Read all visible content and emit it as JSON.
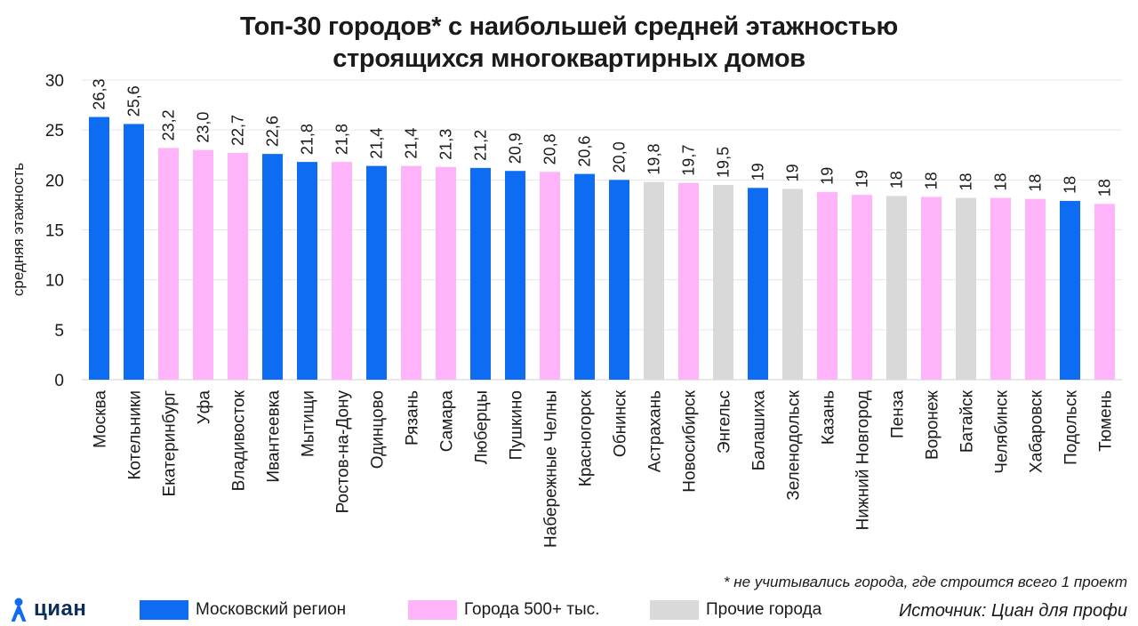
{
  "title_line1": "Топ-30 городов* с наибольшей средней этажностью",
  "title_line2": "строящихся многоквартирных домов",
  "footnote": "* не учитывались города, где строится всего 1 проект",
  "source": "Источник:  Циан для профи",
  "logo": {
    "text": "циан",
    "icon": "cian-logo-icon"
  },
  "colors": {
    "moscow": "#0d6cf2",
    "big": "#ffb3f9",
    "other": "#d9d9d9",
    "grid": "#e6e6e6"
  },
  "legend": [
    {
      "key": "moscow",
      "label": "Московский регион"
    },
    {
      "key": "big",
      "label": "Города 500+ тыс."
    },
    {
      "key": "other",
      "label": "Прочие города"
    }
  ],
  "chart_data": {
    "type": "bar",
    "title": "Топ-30 городов* с наибольшей средней этажностью строящихся многоквартирных домов",
    "xlabel": "",
    "ylabel": "средняя этажность",
    "ylim": [
      0,
      30
    ],
    "yticks": [
      0,
      5,
      10,
      15,
      20,
      25,
      30
    ],
    "grid": true,
    "legend_position": "bottom",
    "categories": [
      "Москва",
      "Котельники",
      "Екатеринбург",
      "Уфа",
      "Владивосток",
      "Ивантеевка",
      "Мытищи",
      "Ростов-на-Дону",
      "Одинцово",
      "Рязань",
      "Самара",
      "Люберцы",
      "Пушкино",
      "Набережные Челны",
      "Красногорск",
      "Обнинск",
      "Астрахань",
      "Новосибирск",
      "Энгельс",
      "Балашиха",
      "Зеленодольск",
      "Казань",
      "Нижний Новгород",
      "Пенза",
      "Воронеж",
      "Батайск",
      "Челябинск",
      "Хабаровск",
      "Подольск",
      "Тюмень"
    ],
    "values": [
      26.3,
      25.6,
      23.2,
      23.0,
      22.7,
      22.6,
      21.8,
      21.8,
      21.4,
      21.4,
      21.3,
      21.2,
      20.9,
      20.8,
      20.6,
      20.0,
      19.8,
      19.7,
      19.5,
      19.2,
      19.1,
      18.8,
      18.5,
      18.4,
      18.3,
      18.2,
      18.2,
      18.1,
      17.9,
      17.6
    ],
    "labels": [
      "26,3",
      "25,6",
      "23,2",
      "23,0",
      "22,7",
      "22,6",
      "21,8",
      "21,8",
      "21,4",
      "21,4",
      "21,3",
      "21,2",
      "20,9",
      "20,8",
      "20,6",
      "20,0",
      "19,8",
      "19,7",
      "19,5",
      "19",
      "19",
      "19",
      "19",
      "18",
      "18",
      "18",
      "18",
      "18",
      "18",
      "18"
    ],
    "groups": [
      "moscow",
      "moscow",
      "big",
      "big",
      "big",
      "moscow",
      "moscow",
      "big",
      "moscow",
      "big",
      "big",
      "moscow",
      "moscow",
      "big",
      "moscow",
      "moscow",
      "other",
      "big",
      "other",
      "moscow",
      "other",
      "big",
      "big",
      "other",
      "big",
      "other",
      "big",
      "big",
      "moscow",
      "big"
    ]
  }
}
